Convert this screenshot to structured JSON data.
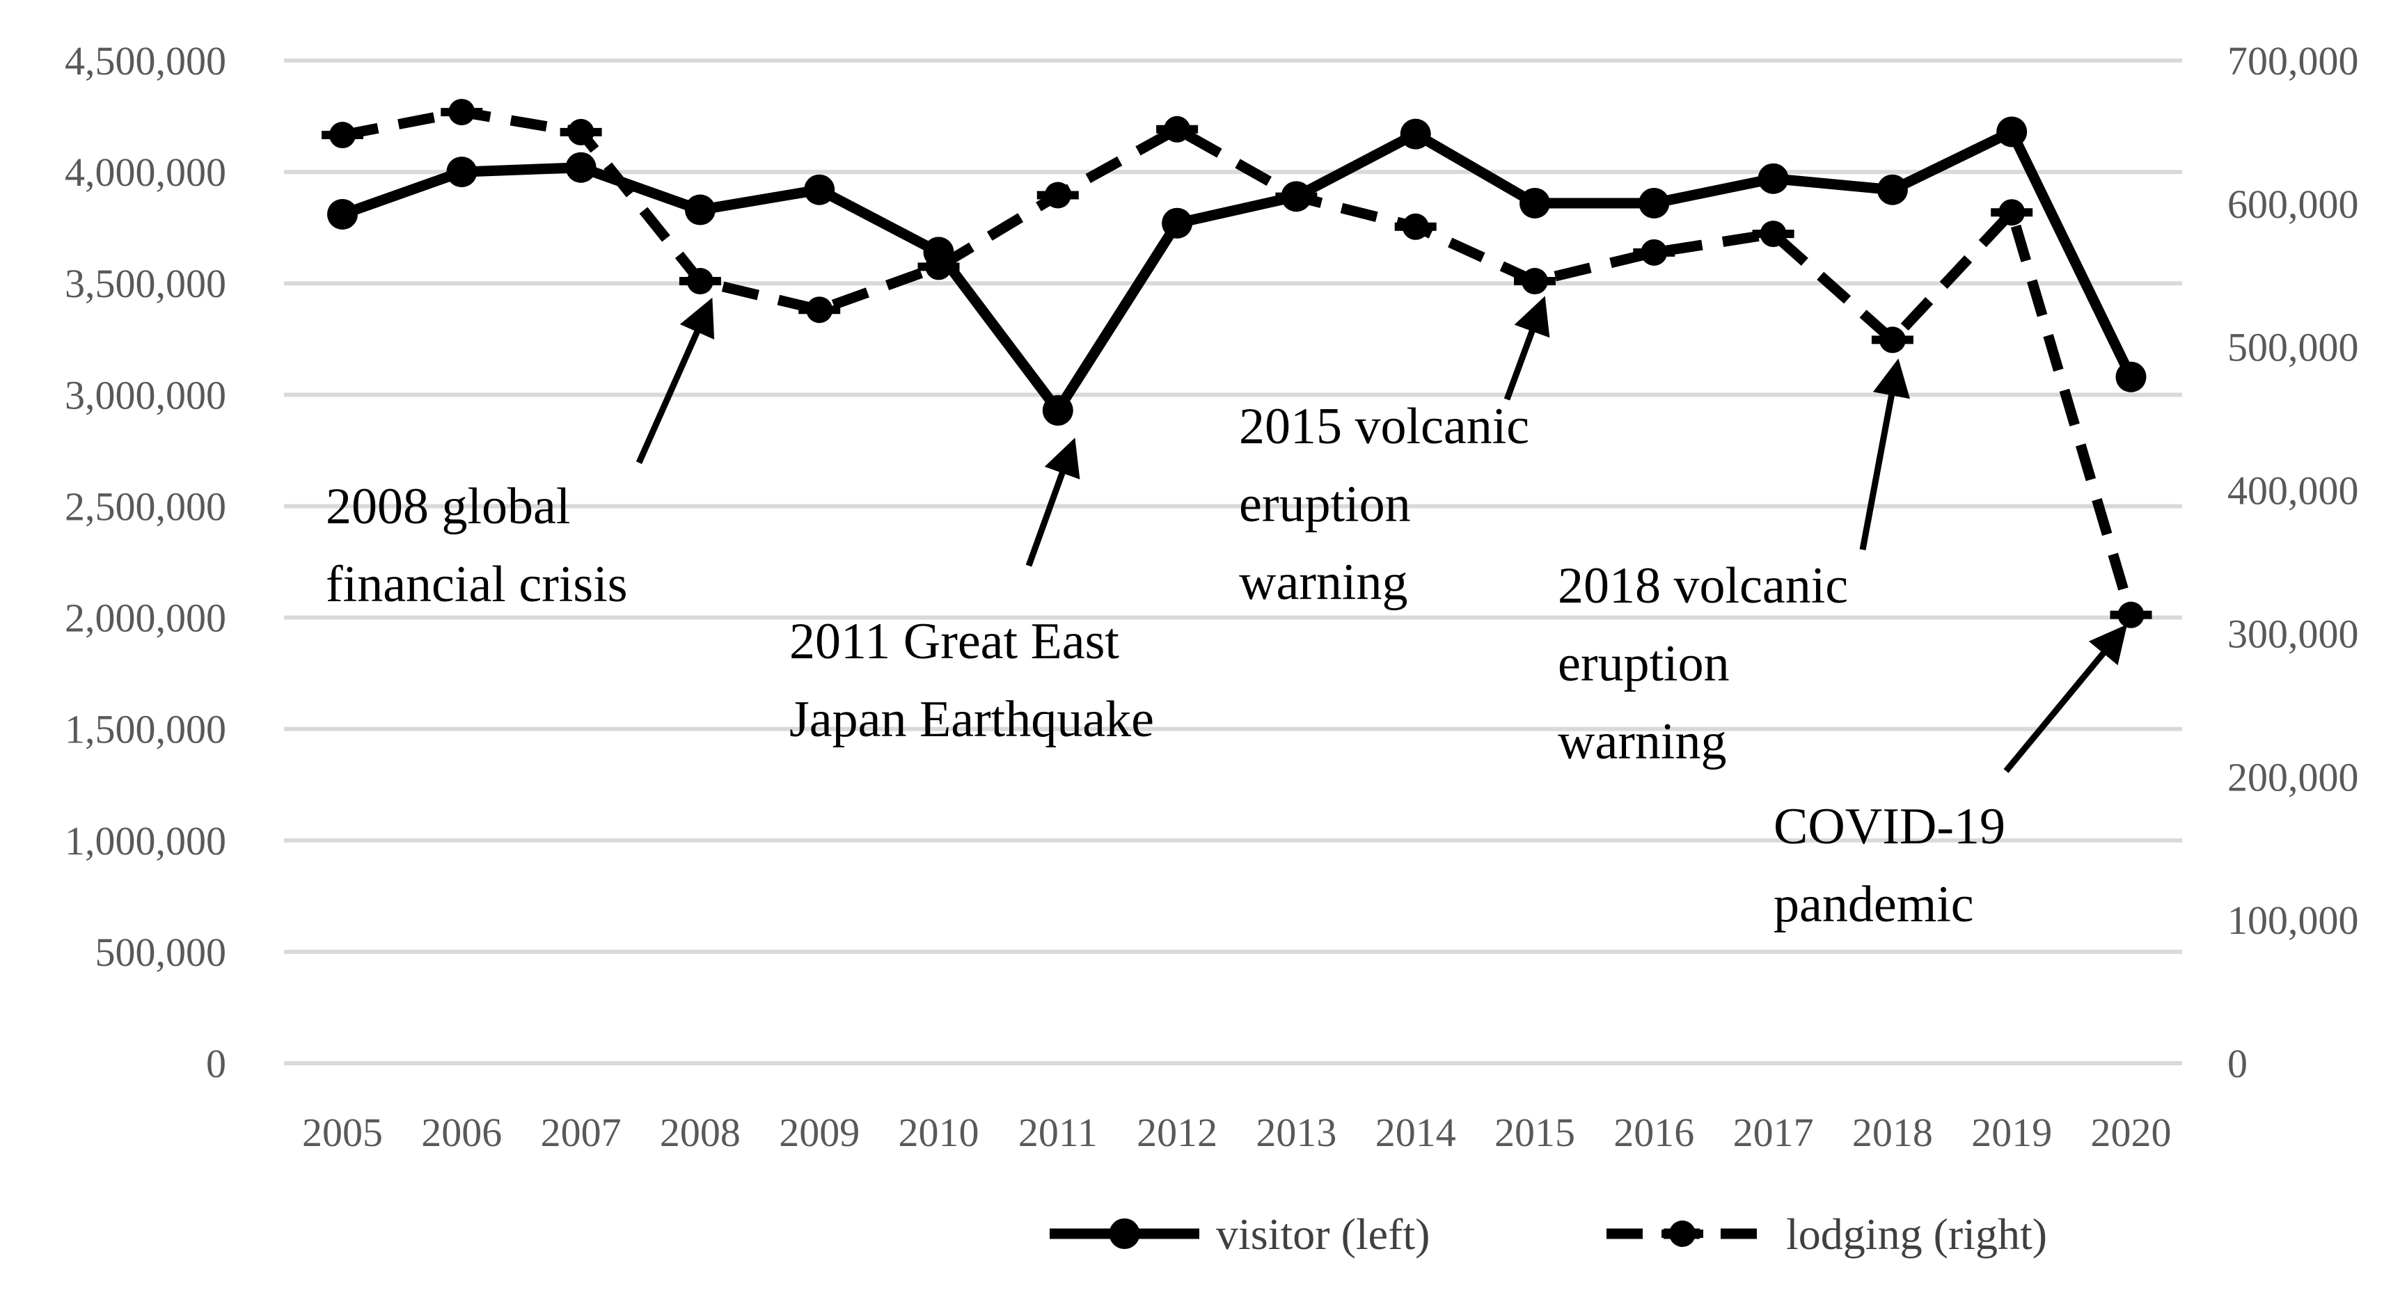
{
  "chart_data": {
    "type": "line",
    "title": "",
    "xlabel": "",
    "ylabel_left": "",
    "ylabel_right": "",
    "x": [
      "2005",
      "2006",
      "2007",
      "2008",
      "2009",
      "2010",
      "2011",
      "2012",
      "2013",
      "2014",
      "2015",
      "2016",
      "2017",
      "2018",
      "2019",
      "2020"
    ],
    "ylim_left": [
      0,
      4500000
    ],
    "ylim_right": [
      0,
      700000
    ],
    "yticks_left": [
      "0",
      "500,000",
      "1,000,000",
      "1,500,000",
      "2,000,000",
      "2,500,000",
      "3,000,000",
      "3,500,000",
      "4,000,000",
      "4,500,000"
    ],
    "yticks_right": [
      "0",
      "100,000",
      "200,000",
      "300,000",
      "400,000",
      "500,000",
      "600,000",
      "700,000"
    ],
    "grid": true,
    "legend_position": "bottom-right",
    "series": [
      {
        "name": "visitor (left)",
        "axis": "left",
        "style": "solid",
        "color": "#000000",
        "values": [
          3810000,
          4000000,
          4020000,
          3830000,
          3920000,
          3640000,
          2930000,
          3770000,
          3890000,
          4170000,
          3860000,
          3860000,
          3970000,
          3920000,
          4180000,
          3080000
        ]
      },
      {
        "name": "lodging (right)",
        "axis": "right",
        "style": "dashed",
        "color": "#000000",
        "values": [
          648000,
          664000,
          650000,
          546000,
          526000,
          556000,
          606000,
          652000,
          605000,
          584000,
          546000,
          566000,
          579000,
          505000,
          594000,
          313000
        ]
      }
    ],
    "annotations": [
      {
        "lines": [
          "2008  global",
          "financial crisis"
        ],
        "year": "2008",
        "series": "lodging (right)"
      },
      {
        "lines": [
          "2011 Great East",
          "Japan Earthquake"
        ],
        "year": "2011",
        "series": "visitor (left)"
      },
      {
        "lines": [
          "2015 volcanic",
          "eruption",
          "warning"
        ],
        "year": "2015",
        "series": "lodging (right)"
      },
      {
        "lines": [
          "2018 volcanic",
          "eruption",
          "warning"
        ],
        "year": "2018",
        "series": "lodging (right)"
      },
      {
        "lines": [
          "COVID-19",
          "pandemic"
        ],
        "year": "2020",
        "series": "lodging (right)"
      }
    ]
  }
}
